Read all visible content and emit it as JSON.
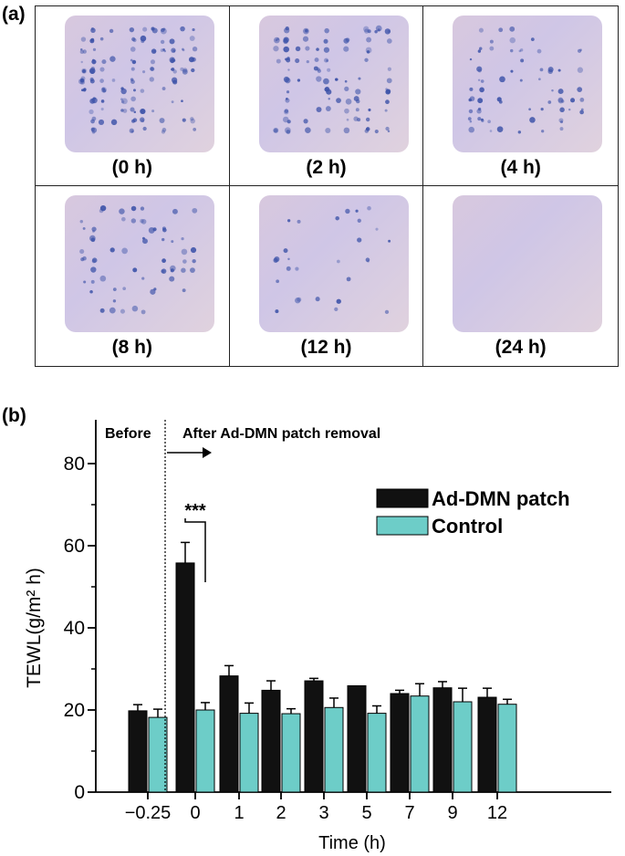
{
  "panel_a": {
    "label": "(a)",
    "images": [
      {
        "caption": "(0 h)",
        "dye": 0.95
      },
      {
        "caption": "(2 h)",
        "dye": 0.75
      },
      {
        "caption": "(4 h)",
        "dye": 0.5
      },
      {
        "caption": "(8 h)",
        "dye": 0.45
      },
      {
        "caption": "(12 h)",
        "dye": 0.2
      },
      {
        "caption": "(24 h)",
        "dye": 0.0
      }
    ],
    "colors": {
      "skin": "#d8cbe0",
      "dye": "#3c52a8"
    }
  },
  "panel_b": {
    "label": "(b)",
    "before_text": "Before",
    "after_text": "After Ad-DMN patch removal",
    "significance": "***"
  },
  "chart_data": {
    "type": "bar",
    "categories": [
      "−0.25",
      "0",
      "1",
      "2",
      "3",
      "5",
      "7",
      "9",
      "12"
    ],
    "series": [
      {
        "name": "Ad-DMN patch",
        "color": "#111111",
        "values": [
          19.8,
          55.8,
          28.3,
          24.8,
          27.1,
          25.9,
          24.0,
          25.4,
          23.1
        ],
        "errors": [
          1.5,
          5.0,
          2.5,
          2.3,
          0.6,
          0.0,
          0.8,
          1.5,
          2.2
        ]
      },
      {
        "name": "Control",
        "color": "#6dcdc8",
        "values": [
          18.2,
          20.0,
          19.2,
          19.1,
          20.6,
          19.2,
          23.4,
          22.0,
          21.4
        ],
        "errors": [
          2.0,
          1.8,
          2.5,
          1.2,
          2.3,
          1.8,
          3.0,
          3.3,
          1.2
        ]
      }
    ],
    "xlabel": "Time (h)",
    "ylabel": "TEWL(g/m² h)",
    "yticks": [
      "0",
      "20",
      "40",
      "60",
      "80"
    ],
    "ylim": [
      0,
      90
    ],
    "legend_position": "top-right",
    "grid": false
  }
}
